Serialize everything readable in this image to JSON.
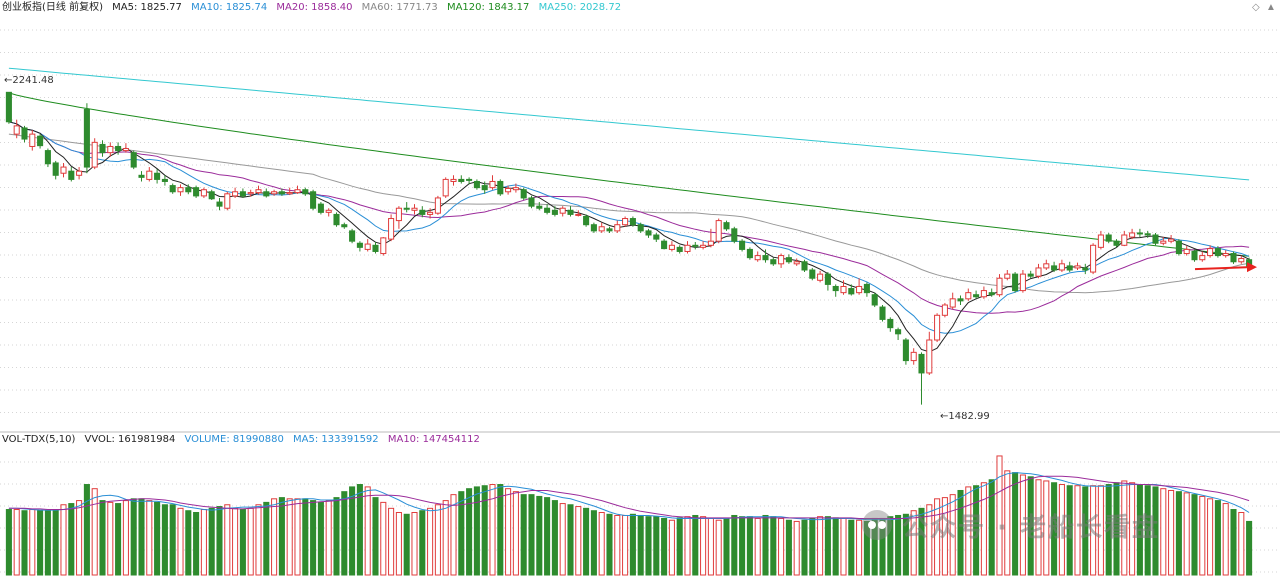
{
  "header": {
    "title": "创业板指(日线 前复权)",
    "ma5": "MA5: 1825.77",
    "ma10": "MA10: 1825.74",
    "ma20": "MA20: 1858.40",
    "ma60": "MA60: 1771.73",
    "ma120": "MA120: 1843.17",
    "ma250": "MA250: 2028.72"
  },
  "volume_header": {
    "title": "VOL-TDX(5,10)",
    "vvol": "VVOL: 161981984",
    "volume": "VOLUME: 81990880",
    "ma5": "MA5: 133391592",
    "ma10": "MA10: 147454112"
  },
  "annotations": {
    "high_label": "2241.48",
    "low_label": "1482.99"
  },
  "watermark": "公众号 · 老船长看盘",
  "colors": {
    "up": "#e03c3c",
    "down": "#2e8b2e",
    "ma5": "#222222",
    "ma10": "#2a8fd6",
    "ma20": "#9b2c9b",
    "ma60": "#999999",
    "ma120": "#1e8c1e",
    "ma250": "#33c8d0",
    "arrow": "#e8231f"
  },
  "chart_data": {
    "type": "candlestick",
    "title": "创业板指(日线 前复权)",
    "high": 2241.48,
    "low": 1482.99,
    "candles": [
      [
        2241.5,
        2170.0,
        2241.5,
        2165.0
      ],
      [
        2140.0,
        2160.0,
        2175.0,
        2130.0
      ],
      [
        2155.0,
        2128.0,
        2160.0,
        2120.0
      ],
      [
        2110.0,
        2140.0,
        2150.0,
        2100.0
      ],
      [
        2135.0,
        2112.0,
        2140.0,
        2105.0
      ],
      [
        2100.0,
        2068.0,
        2105.0,
        2060.0
      ],
      [
        2070.0,
        2040.0,
        2075.0,
        2030.0
      ],
      [
        2045.0,
        2060.0,
        2070.0,
        2035.0
      ],
      [
        2050.0,
        2030.0,
        2060.0,
        2025.0
      ],
      [
        2040.0,
        2050.0,
        2060.0,
        2030.0
      ],
      [
        2200.0,
        2060.0,
        2215.0,
        2045.0
      ],
      [
        2060.0,
        2120.0,
        2130.0,
        2055.0
      ],
      [
        2115.0,
        2095.0,
        2125.0,
        2085.0
      ],
      [
        2095.0,
        2110.0,
        2120.0,
        2085.0
      ],
      [
        2110.0,
        2100.0,
        2120.0,
        2090.0
      ],
      [
        2100.0,
        2105.0,
        2118.0,
        2095.0
      ],
      [
        2095.0,
        2060.0,
        2100.0,
        2055.0
      ],
      [
        2040.0,
        2035.0,
        2050.0,
        2025.0
      ],
      [
        2030.0,
        2050.0,
        2060.0,
        2025.0
      ],
      [
        2045.0,
        2030.0,
        2055.0,
        2020.0
      ],
      [
        2030.0,
        2025.0,
        2040.0,
        2015.0
      ],
      [
        2015.0,
        2000.0,
        2020.0,
        1995.0
      ],
      [
        2000.0,
        2010.0,
        2018.0,
        1990.0
      ],
      [
        2010.0,
        2000.0,
        2018.0,
        1994.0
      ],
      [
        2010.0,
        1990.0,
        2015.0,
        1985.0
      ],
      [
        1990.0,
        2005.0,
        2010.0,
        1985.0
      ],
      [
        2000.0,
        1983.0,
        2005.0,
        1980.0
      ],
      [
        1975.0,
        1965.0,
        1985.0,
        1955.0
      ],
      [
        1960.0,
        1995.0,
        2000.0,
        1955.0
      ],
      [
        1990.0,
        2000.0,
        2010.0,
        1985.0
      ],
      [
        2000.0,
        1990.0,
        2008.0,
        1985.0
      ],
      [
        1995.0,
        1998.0,
        2005.0,
        1988.0
      ],
      [
        1998.0,
        2005.0,
        2015.0,
        1993.0
      ],
      [
        2000.0,
        1990.0,
        2008.0,
        1986.0
      ],
      [
        1995.0,
        2000.0,
        2005.0,
        1990.0
      ],
      [
        2000.0,
        1995.0,
        2008.0,
        1990.0
      ],
      [
        1995.0,
        1998.0,
        2010.0,
        1992.0
      ],
      [
        1998.0,
        2005.0,
        2015.0,
        1995.0
      ],
      [
        2005.0,
        1995.0,
        2010.0,
        1990.0
      ],
      [
        2000.0,
        1960.0,
        2005.0,
        1955.0
      ],
      [
        1970.0,
        1950.0,
        1975.0,
        1945.0
      ],
      [
        1950.0,
        1955.0,
        1960.0,
        1940.0
      ],
      [
        1945.0,
        1920.0,
        1950.0,
        1915.0
      ],
      [
        1920.0,
        1915.0,
        1925.0,
        1910.0
      ],
      [
        1905.0,
        1880.0,
        1910.0,
        1875.0
      ],
      [
        1875.0,
        1865.0,
        1880.0,
        1855.0
      ],
      [
        1860.0,
        1873.0,
        1885.0,
        1855.0
      ],
      [
        1870.0,
        1855.0,
        1878.0,
        1850.0
      ],
      [
        1850.0,
        1888.0,
        1890.0,
        1845.0
      ],
      [
        1885.0,
        1935.0,
        1945.0,
        1880.0
      ],
      [
        1930.0,
        1960.0,
        1965.0,
        1910.0
      ],
      [
        1960.0,
        1958.0,
        1975.0,
        1950.0
      ],
      [
        1955.0,
        1960.0,
        1970.0,
        1945.0
      ],
      [
        1955.0,
        1945.0,
        1965.0,
        1938.0
      ],
      [
        1945.0,
        1950.0,
        1960.0,
        1935.0
      ],
      [
        1948.0,
        1985.0,
        1990.0,
        1944.0
      ],
      [
        1990.0,
        2030.0,
        2035.0,
        1985.0
      ],
      [
        2025.0,
        2030.0,
        2040.0,
        2015.0
      ],
      [
        2030.0,
        2025.0,
        2040.0,
        2020.0
      ],
      [
        2030.0,
        2028.0,
        2035.0,
        2018.0
      ],
      [
        2025.0,
        2010.0,
        2030.0,
        2005.0
      ],
      [
        2015.0,
        2005.0,
        2025.0,
        1995.0
      ],
      [
        2010.0,
        2025.0,
        2040.0,
        2005.0
      ],
      [
        2025.0,
        1995.0,
        2030.0,
        1990.0
      ],
      [
        2000.0,
        2008.0,
        2015.0,
        1993.0
      ],
      [
        2005.0,
        2010.0,
        2020.0,
        1998.0
      ],
      [
        2005.0,
        1985.0,
        2010.0,
        1980.0
      ],
      [
        1985.0,
        1965.0,
        1990.0,
        1960.0
      ],
      [
        1965.0,
        1960.0,
        1975.0,
        1955.0
      ],
      [
        1960.0,
        1950.0,
        1970.0,
        1945.0
      ],
      [
        1955.0,
        1945.0,
        1965.0,
        1940.0
      ],
      [
        1948.0,
        1960.0,
        1965.0,
        1940.0
      ],
      [
        1955.0,
        1945.0,
        1965.0,
        1940.0
      ],
      [
        1945.0,
        1945.0,
        1955.0,
        1940.0
      ],
      [
        1940.0,
        1920.0,
        1945.0,
        1915.0
      ],
      [
        1920.0,
        1905.0,
        1925.0,
        1900.0
      ],
      [
        1905.0,
        1915.0,
        1925.0,
        1900.0
      ],
      [
        1910.0,
        1905.0,
        1915.0,
        1900.0
      ],
      [
        1905.0,
        1920.0,
        1930.0,
        1900.0
      ],
      [
        1920.0,
        1935.0,
        1940.0,
        1915.0
      ],
      [
        1935.0,
        1920.0,
        1940.0,
        1915.0
      ],
      [
        1920.0,
        1905.0,
        1925.0,
        1900.0
      ],
      [
        1905.0,
        1895.0,
        1910.0,
        1888.0
      ],
      [
        1895.0,
        1885.0,
        1900.0,
        1878.0
      ],
      [
        1880.0,
        1862.0,
        1885.0,
        1860.0
      ],
      [
        1860.0,
        1870.0,
        1880.0,
        1855.0
      ],
      [
        1865.0,
        1855.0,
        1870.0,
        1850.0
      ],
      [
        1855.0,
        1870.0,
        1880.0,
        1850.0
      ],
      [
        1870.0,
        1868.0,
        1878.0,
        1860.0
      ],
      [
        1865.0,
        1870.0,
        1880.0,
        1860.0
      ],
      [
        1870.0,
        1880.0,
        1910.0,
        1865.0
      ],
      [
        1880.0,
        1930.0,
        1935.0,
        1875.0
      ],
      [
        1925.0,
        1910.0,
        1930.0,
        1905.0
      ],
      [
        1910.0,
        1880.0,
        1915.0,
        1875.0
      ],
      [
        1880.0,
        1860.0,
        1885.0,
        1855.0
      ],
      [
        1860.0,
        1840.0,
        1865.0,
        1835.0
      ],
      [
        1835.0,
        1845.0,
        1855.0,
        1830.0
      ],
      [
        1845.0,
        1835.0,
        1860.0,
        1828.0
      ],
      [
        1835.0,
        1825.0,
        1840.0,
        1820.0
      ],
      [
        1825.0,
        1845.0,
        1850.0,
        1815.0
      ],
      [
        1840.0,
        1830.0,
        1848.0,
        1825.0
      ],
      [
        1825.0,
        1830.0,
        1838.0,
        1820.0
      ],
      [
        1830.0,
        1810.0,
        1835.0,
        1805.0
      ],
      [
        1810.0,
        1790.0,
        1815.0,
        1785.0
      ],
      [
        1785.0,
        1800.0,
        1808.0,
        1780.0
      ],
      [
        1800.0,
        1775.0,
        1805.0,
        1760.0
      ],
      [
        1770.0,
        1760.0,
        1775.0,
        1745.0
      ],
      [
        1755.0,
        1770.0,
        1785.0,
        1750.0
      ],
      [
        1765.0,
        1752.0,
        1775.0,
        1748.0
      ],
      [
        1755.0,
        1770.0,
        1790.0,
        1750.0
      ],
      [
        1775.0,
        1755.0,
        1780.0,
        1745.0
      ],
      [
        1750.0,
        1725.0,
        1755.0,
        1720.0
      ],
      [
        1720.0,
        1690.0,
        1725.0,
        1685.0
      ],
      [
        1690.0,
        1670.0,
        1695.0,
        1660.0
      ],
      [
        1665.0,
        1655.0,
        1670.0,
        1640.0
      ],
      [
        1640.0,
        1590.0,
        1645.0,
        1580.0
      ],
      [
        1590.0,
        1610.0,
        1620.0,
        1580.0
      ],
      [
        1605.0,
        1560.0,
        1610.0,
        1482.99
      ],
      [
        1560.0,
        1640.0,
        1660.0,
        1555.0
      ],
      [
        1640.0,
        1700.0,
        1705.0,
        1635.0
      ],
      [
        1700.0,
        1725.0,
        1730.0,
        1695.0
      ],
      [
        1720.0,
        1740.0,
        1755.0,
        1715.0
      ],
      [
        1740.0,
        1735.0,
        1748.0,
        1725.0
      ],
      [
        1740.0,
        1755.0,
        1765.0,
        1735.0
      ],
      [
        1750.0,
        1745.0,
        1760.0,
        1740.0
      ],
      [
        1745.0,
        1760.0,
        1770.0,
        1740.0
      ],
      [
        1755.0,
        1750.0,
        1765.0,
        1745.0
      ],
      [
        1750.0,
        1790.0,
        1800.0,
        1745.0
      ],
      [
        1790.0,
        1800.0,
        1810.0,
        1785.0
      ],
      [
        1800.0,
        1760.0,
        1805.0,
        1755.0
      ],
      [
        1760.0,
        1800.0,
        1810.0,
        1755.0
      ],
      [
        1800.0,
        1795.0,
        1808.0,
        1790.0
      ],
      [
        1795.0,
        1815.0,
        1825.0,
        1790.0
      ],
      [
        1815.0,
        1825.0,
        1835.0,
        1810.0
      ],
      [
        1820.0,
        1810.0,
        1830.0,
        1805.0
      ],
      [
        1810.0,
        1825.0,
        1835.0,
        1805.0
      ],
      [
        1820.0,
        1810.0,
        1830.0,
        1805.0
      ],
      [
        1815.0,
        1820.0,
        1828.0,
        1810.0
      ],
      [
        1815.0,
        1810.0,
        1825.0,
        1800.0
      ],
      [
        1805.0,
        1870.0,
        1875.0,
        1800.0
      ],
      [
        1865.0,
        1895.0,
        1905.0,
        1860.0
      ],
      [
        1895.0,
        1880.0,
        1900.0,
        1875.0
      ],
      [
        1880.0,
        1870.0,
        1885.0,
        1865.0
      ],
      [
        1870.0,
        1895.0,
        1905.0,
        1868.0
      ],
      [
        1890.0,
        1900.0,
        1910.0,
        1885.0
      ],
      [
        1900.0,
        1898.0,
        1910.0,
        1890.0
      ],
      [
        1898.0,
        1895.0,
        1905.0,
        1888.0
      ],
      [
        1895.0,
        1875.0,
        1900.0,
        1870.0
      ],
      [
        1875.0,
        1880.0,
        1890.0,
        1870.0
      ],
      [
        1880.0,
        1885.0,
        1895.0,
        1875.0
      ],
      [
        1880.0,
        1850.0,
        1885.0,
        1845.0
      ],
      [
        1850.0,
        1860.0,
        1868.0,
        1845.0
      ],
      [
        1855.0,
        1835.0,
        1860.0,
        1830.0
      ],
      [
        1835.0,
        1845.0,
        1855.0,
        1830.0
      ],
      [
        1845.0,
        1862.0,
        1870.0,
        1840.0
      ],
      [
        1862.0,
        1845.0,
        1868.0,
        1840.0
      ],
      [
        1845.0,
        1850.0,
        1858.0,
        1840.0
      ],
      [
        1850.0,
        1830.0,
        1855.0,
        1825.0
      ],
      [
        1830.0,
        1838.0,
        1845.0,
        1825.0
      ],
      [
        1835.0,
        1818.0,
        1840.0,
        1815.0
      ]
    ],
    "volume": [
      110,
      110,
      108,
      110,
      108,
      108,
      110,
      118,
      120,
      125,
      152,
      145,
      125,
      122,
      120,
      125,
      128,
      128,
      125,
      122,
      118,
      118,
      112,
      108,
      105,
      110,
      112,
      115,
      118,
      112,
      110,
      112,
      118,
      122,
      128,
      130,
      128,
      128,
      128,
      125,
      122,
      125,
      130,
      140,
      148,
      152,
      148,
      130,
      122,
      112,
      105,
      102,
      105,
      108,
      112,
      118,
      125,
      135,
      140,
      145,
      148,
      150,
      152,
      152,
      145,
      140,
      135,
      135,
      132,
      130,
      125,
      120,
      118,
      115,
      112,
      108,
      105,
      102,
      100,
      100,
      102,
      100,
      98,
      98,
      95,
      92,
      96,
      98,
      100,
      98,
      95,
      92,
      95,
      100,
      98,
      98,
      95,
      100,
      98,
      95,
      92,
      90,
      92,
      95,
      98,
      98,
      96,
      95,
      92,
      92,
      90,
      95,
      95,
      98,
      100,
      102,
      108,
      112,
      118,
      128,
      130,
      135,
      142,
      148,
      150,
      155,
      160,
      200,
      175,
      172,
      168,
      165,
      160,
      158,
      155,
      152,
      150,
      150,
      148,
      150,
      150,
      152,
      155,
      158,
      155,
      152,
      150,
      148,
      145,
      142,
      140,
      138,
      135,
      132,
      128,
      125,
      120,
      110,
      105,
      90
    ],
    "vol_ma5": [
      112,
      112,
      111,
      110,
      109,
      109,
      109,
      110,
      112,
      116,
      124,
      130,
      133,
      134,
      132,
      127,
      124,
      124,
      124,
      124,
      122,
      120,
      117,
      114,
      112,
      110,
      109,
      110,
      112,
      113,
      114,
      114,
      115,
      116,
      118,
      122,
      125,
      127,
      128,
      128,
      126,
      126,
      126,
      128,
      132,
      138,
      142,
      143,
      138,
      132,
      126,
      119,
      114,
      110,
      108,
      109,
      112,
      118,
      124,
      130,
      136,
      140,
      144,
      148,
      149,
      148,
      146,
      144,
      140,
      136,
      133,
      130,
      128,
      124,
      120,
      116,
      111,
      106,
      102,
      100,
      100,
      100,
      100,
      99,
      98,
      96,
      95,
      95,
      95,
      95,
      95,
      95,
      95,
      96,
      97,
      98,
      98,
      98,
      98,
      98,
      96,
      95,
      94,
      93,
      93,
      94,
      95,
      95,
      95,
      94,
      93,
      93,
      93,
      93,
      94,
      96,
      99,
      102,
      106,
      111,
      117,
      123,
      130,
      138,
      145,
      150,
      156,
      165,
      170,
      172,
      171,
      170,
      168,
      165,
      162,
      159,
      155,
      152,
      150,
      149,
      149,
      149,
      150,
      151,
      152,
      152,
      152,
      152,
      150,
      147,
      144,
      140,
      137,
      134,
      131,
      128,
      124,
      119,
      113,
      105
    ],
    "vol_ma10": [
      112,
      112,
      112,
      111,
      111,
      110,
      110,
      110,
      111,
      113,
      116,
      119,
      122,
      124,
      125,
      126,
      127,
      128,
      128,
      127,
      126,
      124,
      121,
      119,
      117,
      115,
      114,
      113,
      112,
      111,
      111,
      112,
      113,
      114,
      115,
      116,
      118,
      120,
      121,
      122,
      123,
      124,
      125,
      127,
      129,
      131,
      133,
      134,
      134,
      134,
      133,
      131,
      128,
      125,
      122,
      120,
      118,
      117,
      118,
      120,
      122,
      125,
      128,
      132,
      135,
      138,
      140,
      142,
      142,
      142,
      140,
      138,
      136,
      134,
      131,
      128,
      125,
      121,
      117,
      113,
      110,
      107,
      105,
      103,
      101,
      99,
      98,
      97,
      96,
      96,
      96,
      96,
      96,
      96,
      96,
      96,
      96,
      96,
      96,
      96,
      96,
      96,
      96,
      96,
      96,
      96,
      96,
      96,
      96,
      95,
      95,
      95,
      95,
      95,
      95,
      95,
      96,
      97,
      99,
      101,
      104,
      108,
      112,
      117,
      122,
      127,
      133,
      140,
      147,
      153,
      158,
      162,
      165,
      166,
      166,
      166,
      165,
      164,
      162,
      160,
      158,
      156,
      155,
      154,
      153,
      152,
      152,
      151,
      150,
      149,
      148,
      147,
      145,
      143,
      141,
      139,
      136,
      133,
      129,
      125
    ]
  }
}
